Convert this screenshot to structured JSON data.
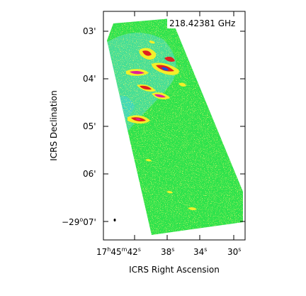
{
  "frequency_label": "218.42381 GHz",
  "axes": {
    "xlabel": "ICRS Right Ascension",
    "ylabel": "ICRS Declination",
    "x_ticks": [
      {
        "main": "17",
        "h": "h",
        "mm": "45",
        "m": "m",
        "ss": "42",
        "s": "s"
      },
      {
        "main": "38",
        "s": "s"
      },
      {
        "main": "34",
        "s": "s"
      },
      {
        "main": "30",
        "s": "s"
      }
    ],
    "y_ticks": [
      {
        "main": "03'"
      },
      {
        "main": "04'"
      },
      {
        "main": "05'"
      },
      {
        "main": "06'"
      },
      {
        "main": "−29",
        "deg": "o",
        "rest": "07'"
      }
    ]
  },
  "colors": {
    "background_map": "#22e04a",
    "cyan_region": "#3fd6c8",
    "yellow": "#f2ef2a",
    "red": "#e02020",
    "magenta": "#e0209a",
    "blue": "#2050e0"
  }
}
